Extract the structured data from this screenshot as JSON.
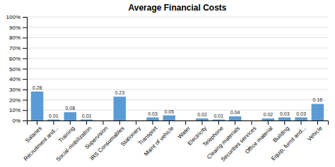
{
  "chart_data": {
    "type": "bar",
    "title": "Average Financial Costs",
    "categories": [
      "Salaries",
      "Recruitment and...",
      "Training",
      "Social-mobilization",
      "Supervision",
      "IRS Consumables",
      "Stationery",
      "Transport",
      "Maint of vehicle",
      "Water",
      "Electricity",
      "Telephone",
      "Cleaing materials",
      "Securities services",
      "Office material",
      "Building",
      "Equip, furnit and...",
      "Vehicle"
    ],
    "values": [
      0.28,
      0.01,
      0.08,
      0.01,
      0.0,
      0.23,
      0.0,
      0.03,
      0.05,
      0.0,
      0.02,
      0.01,
      0.04,
      0.0,
      0.02,
      0.03,
      0.03,
      0.16
    ],
    "value_labels": [
      "0.28",
      "0.01",
      "0.08",
      "0.01",
      null,
      "0.23",
      null,
      "0.03",
      "0.05",
      null,
      "0.02",
      "0.01",
      "0.04",
      null,
      "0.02",
      "0.03",
      "0.03",
      "0.16"
    ],
    "data_labels": true,
    "color": "#5B9BD5",
    "ylim": [
      0,
      1.0
    ],
    "yticks": [
      {
        "value": 0.0,
        "label": "0%"
      },
      {
        "value": 0.1,
        "label": "10%"
      },
      {
        "value": 0.2,
        "label": "20%"
      },
      {
        "value": 0.3,
        "label": "30%"
      },
      {
        "value": 0.4,
        "label": "40%"
      },
      {
        "value": 0.5,
        "label": "50%"
      },
      {
        "value": 0.6,
        "label": "60%"
      },
      {
        "value": 0.7,
        "label": "70%"
      },
      {
        "value": 0.8,
        "label": "80%"
      },
      {
        "value": 0.9,
        "label": "90%"
      },
      {
        "value": 1.0,
        "label": "100%"
      }
    ],
    "grid": true
  }
}
